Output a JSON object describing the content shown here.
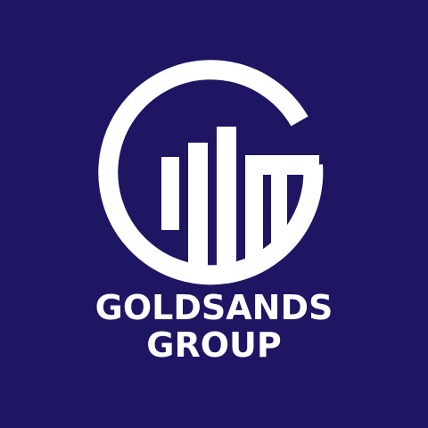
{
  "brand": {
    "logo_icon": "g-bar-chart-logo",
    "name_line1": "GOLDSANDS",
    "name_line2": "GROUP"
  },
  "colors": {
    "background": "#1e1563",
    "foreground": "#ffffff"
  }
}
